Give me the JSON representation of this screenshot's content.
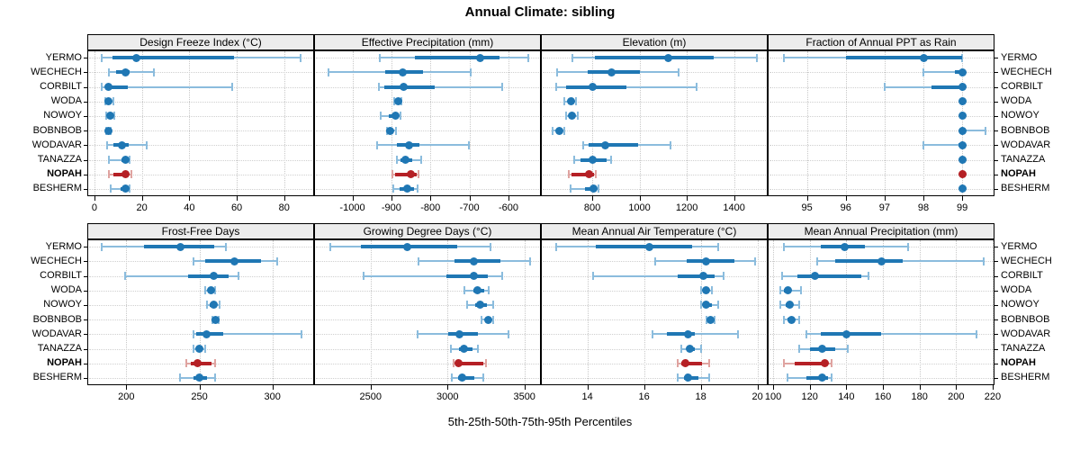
{
  "figure": {
    "title": "Annual Climate: sibling",
    "xlabel": "5th-25th-50th-75th-95th Percentiles",
    "stations": [
      "YERMO",
      "WECHECH",
      "CORBILT",
      "WODA",
      "NOWOY",
      "BOBNBOB",
      "WODAVAR",
      "TANAZZA",
      "NOPAH",
      "BESHERM"
    ],
    "highlight_station": "NOPAH",
    "colors": {
      "median_blue": "#1f77b4",
      "whisker_blue": "#8bbcdd",
      "median_red": "#b52025",
      "whisker_red": "#dfa3a0",
      "strip_bg": "#ececec",
      "panel_border": "#000000",
      "grid": "#c8c8c8",
      "text": "#000000"
    }
  },
  "chart_data": [
    {
      "type": "dotplot-percentiles",
      "title": "Design Freeze Index (°C)",
      "grid_row": 0,
      "grid_col": 0,
      "xlim": [
        -3,
        92.6
      ],
      "ticks": [
        0,
        20,
        40,
        60,
        80
      ],
      "grid": true,
      "series": [
        {
          "name": "YERMO",
          "values": [
            3,
            7.5,
            17.5,
            59,
            87
          ]
        },
        {
          "name": "WECHECH",
          "values": [
            6,
            9,
            13,
            15,
            25
          ]
        },
        {
          "name": "CORBILT",
          "values": [
            3,
            4.5,
            6,
            14,
            58
          ]
        },
        {
          "name": "WODA",
          "values": [
            4.5,
            5.5,
            6,
            7,
            8
          ]
        },
        {
          "name": "NOWOY",
          "values": [
            5,
            5.5,
            6.5,
            7.5,
            8.5
          ]
        },
        {
          "name": "BOBNBOB",
          "values": [
            5,
            5.5,
            6,
            6.5,
            7
          ]
        },
        {
          "name": "WODAVAR",
          "values": [
            5.5,
            8,
            11.5,
            14.5,
            22
          ]
        },
        {
          "name": "TANAZZA",
          "values": [
            6,
            11.5,
            13,
            14,
            15
          ]
        },
        {
          "name": "NOPAH",
          "values": [
            6,
            8,
            13,
            14.5,
            15.5
          ]
        },
        {
          "name": "BESHERM",
          "values": [
            7,
            11,
            13,
            14,
            15
          ]
        }
      ]
    },
    {
      "type": "dotplot-percentiles",
      "title": "Effective Precipitation (mm)",
      "grid_row": 0,
      "grid_col": 1,
      "xlim": [
        -1098,
        -517
      ],
      "ticks": [
        -1000,
        -900,
        -800,
        -700,
        -600
      ],
      "grid": true,
      "series": [
        {
          "name": "YERMO",
          "values": [
            -930,
            -840,
            -672,
            -623,
            -550
          ]
        },
        {
          "name": "WECHECH",
          "values": [
            -1060,
            -915,
            -870,
            -820,
            -696
          ]
        },
        {
          "name": "CORBILT",
          "values": [
            -932,
            -918,
            -869,
            -789,
            -617
          ]
        },
        {
          "name": "WODA",
          "values": [
            -893,
            -889,
            -883,
            -878,
            -874
          ]
        },
        {
          "name": "NOWOY",
          "values": [
            -927,
            -906,
            -890,
            -881,
            -877
          ]
        },
        {
          "name": "BOBNBOB",
          "values": [
            -911,
            -907,
            -903,
            -895,
            -888
          ]
        },
        {
          "name": "WODAVAR",
          "values": [
            -937,
            -885,
            -854,
            -828,
            -701
          ]
        },
        {
          "name": "TANAZZA",
          "values": [
            -886,
            -877,
            -863,
            -846,
            -824
          ]
        },
        {
          "name": "NOPAH",
          "values": [
            -898,
            -890,
            -851,
            -836,
            -830
          ]
        },
        {
          "name": "BESHERM",
          "values": [
            -894,
            -880,
            -860,
            -843,
            -833
          ]
        }
      ]
    },
    {
      "type": "dotplot-percentiles",
      "title": "Elevation (m)",
      "grid_row": 0,
      "grid_col": 2,
      "xlim": [
        583,
        1542
      ],
      "ticks": [
        800,
        1000,
        1200,
        1400
      ],
      "grid": true,
      "series": [
        {
          "name": "YERMO",
          "values": [
            715,
            810,
            1120,
            1315,
            1495
          ]
        },
        {
          "name": "WECHECH",
          "values": [
            652,
            782,
            880,
            1000,
            1165
          ]
        },
        {
          "name": "CORBILT",
          "values": [
            648,
            688,
            800,
            945,
            1240
          ]
        },
        {
          "name": "WODA",
          "values": [
            682,
            700,
            710,
            722,
            732
          ]
        },
        {
          "name": "NOWOY",
          "values": [
            690,
            705,
            716,
            728,
            739
          ]
        },
        {
          "name": "BOBNBOB",
          "values": [
            633,
            650,
            660,
            672,
            682
          ]
        },
        {
          "name": "WODAVAR",
          "values": [
            760,
            785,
            855,
            995,
            1130
          ]
        },
        {
          "name": "TANAZZA",
          "values": [
            725,
            752,
            800,
            860,
            878
          ]
        },
        {
          "name": "NOPAH",
          "values": [
            700,
            712,
            788,
            808,
            815
          ]
        },
        {
          "name": "BESHERM",
          "values": [
            710,
            770,
            805,
            820,
            828
          ]
        }
      ]
    },
    {
      "type": "dotplot-percentiles",
      "title": "Fraction of Annual PPT as Rain",
      "grid_row": 0,
      "grid_col": 3,
      "xlim": [
        93.99,
        99.83
      ],
      "ticks": [
        95,
        96,
        97,
        98,
        99
      ],
      "grid": true,
      "series": [
        {
          "name": "YERMO",
          "values": [
            94.4,
            96,
            98,
            99,
            99
          ]
        },
        {
          "name": "WECHECH",
          "values": [
            98,
            98.8,
            99,
            99,
            99
          ]
        },
        {
          "name": "CORBILT",
          "values": [
            97,
            98.2,
            99,
            99,
            99
          ]
        },
        {
          "name": "WODA",
          "values": [
            99,
            99,
            99,
            99,
            99
          ]
        },
        {
          "name": "NOWOY",
          "values": [
            99,
            99,
            99,
            99,
            99
          ]
        },
        {
          "name": "BOBNBOB",
          "values": [
            99,
            99,
            99,
            99,
            99.6
          ]
        },
        {
          "name": "WODAVAR",
          "values": [
            98,
            98.9,
            99,
            99,
            99
          ]
        },
        {
          "name": "TANAZZA",
          "values": [
            99,
            99,
            99,
            99,
            99
          ]
        },
        {
          "name": "NOPAH",
          "values": [
            99,
            99,
            99,
            99,
            99
          ]
        },
        {
          "name": "BESHERM",
          "values": [
            99,
            99,
            99,
            99,
            99
          ]
        }
      ]
    },
    {
      "type": "dotplot-percentiles",
      "title": "Frost-Free Days",
      "grid_row": 1,
      "grid_col": 0,
      "xlim": [
        173.3,
        328.5
      ],
      "ticks": [
        200,
        250,
        300
      ],
      "grid": true,
      "series": [
        {
          "name": "YERMO",
          "values": [
            183,
            212,
            237,
            260,
            268
          ]
        },
        {
          "name": "WECHECH",
          "values": [
            246,
            254,
            274,
            292,
            303
          ]
        },
        {
          "name": "CORBILT",
          "values": [
            199,
            242,
            260,
            270,
            277
          ]
        },
        {
          "name": "WODA",
          "values": [
            254,
            256,
            258,
            260,
            261
          ]
        },
        {
          "name": "NOWOY",
          "values": [
            255,
            257,
            260,
            262,
            264
          ]
        },
        {
          "name": "BOBNBOB",
          "values": [
            259,
            260,
            261,
            262,
            263
          ]
        },
        {
          "name": "WODAVAR",
          "values": [
            246,
            248,
            255,
            266,
            320
          ]
        },
        {
          "name": "TANAZZA",
          "values": [
            246,
            248,
            250,
            252,
            254
          ]
        },
        {
          "name": "NOPAH",
          "values": [
            241,
            244,
            249,
            258,
            261
          ]
        },
        {
          "name": "BESHERM",
          "values": [
            237,
            246,
            250,
            255,
            261
          ]
        }
      ]
    },
    {
      "type": "dotplot-percentiles",
      "title": "Growing Degree Days (°C)",
      "grid_row": 1,
      "grid_col": 1,
      "xlim": [
        2133,
        3607
      ],
      "ticks": [
        2500,
        3000,
        3500
      ],
      "grid": true,
      "series": [
        {
          "name": "YERMO",
          "values": [
            2240,
            2440,
            2740,
            3065,
            3280
          ]
        },
        {
          "name": "WECHECH",
          "values": [
            2810,
            3045,
            3170,
            3345,
            3535
          ]
        },
        {
          "name": "CORBILT",
          "values": [
            2455,
            2995,
            3170,
            3260,
            3355
          ]
        },
        {
          "name": "WODA",
          "values": [
            3110,
            3170,
            3195,
            3240,
            3265
          ]
        },
        {
          "name": "NOWOY",
          "values": [
            3130,
            3180,
            3215,
            3255,
            3295
          ]
        },
        {
          "name": "BOBNBOB",
          "values": [
            3220,
            3245,
            3265,
            3280,
            3295
          ]
        },
        {
          "name": "WODAVAR",
          "values": [
            2805,
            3005,
            3080,
            3200,
            3395
          ]
        },
        {
          "name": "TANAZZA",
          "values": [
            3025,
            3075,
            3105,
            3160,
            3200
          ]
        },
        {
          "name": "NOPAH",
          "values": [
            3040,
            3055,
            3070,
            3230,
            3250
          ]
        },
        {
          "name": "BESHERM",
          "values": [
            3030,
            3070,
            3095,
            3175,
            3230
          ]
        }
      ]
    },
    {
      "type": "dotplot-percentiles",
      "title": "Mean Annual Air Temperature (°C)",
      "grid_row": 1,
      "grid_col": 2,
      "xlim": [
        12.36,
        20.36
      ],
      "ticks": [
        14,
        16,
        18,
        20
      ],
      "grid": true,
      "series": [
        {
          "name": "YERMO",
          "values": [
            12.9,
            14.3,
            16.2,
            17.7,
            18.6
          ]
        },
        {
          "name": "WECHECH",
          "values": [
            16.4,
            17.5,
            18.2,
            19.2,
            19.9
          ]
        },
        {
          "name": "CORBILT",
          "values": [
            14.2,
            17.2,
            18.1,
            18.5,
            18.8
          ]
        },
        {
          "name": "WODA",
          "values": [
            18,
            18.1,
            18.2,
            18.3,
            18.4
          ]
        },
        {
          "name": "NOWOY",
          "values": [
            18,
            18.1,
            18.2,
            18.4,
            18.6
          ]
        },
        {
          "name": "BOBNBOB",
          "values": [
            18.2,
            18.3,
            18.35,
            18.4,
            18.5
          ]
        },
        {
          "name": "WODAVAR",
          "values": [
            16.3,
            16.8,
            17.55,
            17.8,
            19.3
          ]
        },
        {
          "name": "TANAZZA",
          "values": [
            17.3,
            17.5,
            17.6,
            17.8,
            18
          ]
        },
        {
          "name": "NOPAH",
          "values": [
            17.2,
            17.3,
            17.45,
            18.05,
            18.3
          ]
        },
        {
          "name": "BESHERM",
          "values": [
            17.2,
            17.4,
            17.55,
            17.9,
            18.3
          ]
        }
      ]
    },
    {
      "type": "dotplot-percentiles",
      "title": "Mean Annual Precipitation (mm)",
      "grid_row": 1,
      "grid_col": 3,
      "xlim": [
        97,
        221
      ],
      "ticks": [
        100,
        120,
        140,
        160,
        180,
        200,
        220
      ],
      "grid": true,
      "series": [
        {
          "name": "YERMO",
          "values": [
            106,
            126,
            139,
            150,
            174
          ]
        },
        {
          "name": "WECHECH",
          "values": [
            124,
            134,
            159,
            171,
            215
          ]
        },
        {
          "name": "CORBILT",
          "values": [
            105,
            113,
            123,
            148,
            152
          ]
        },
        {
          "name": "WODA",
          "values": [
            104,
            106,
            108,
            110,
            115
          ]
        },
        {
          "name": "NOWOY",
          "values": [
            104,
            107,
            109,
            111,
            114
          ]
        },
        {
          "name": "BOBNBOB",
          "values": [
            106,
            108,
            110,
            112,
            114
          ]
        },
        {
          "name": "WODAVAR",
          "values": [
            118,
            126,
            140,
            159,
            211
          ]
        },
        {
          "name": "TANAZZA",
          "values": [
            114,
            120,
            127,
            134,
            141
          ]
        },
        {
          "name": "NOPAH",
          "values": [
            106,
            112,
            128,
            130,
            132
          ]
        },
        {
          "name": "BESHERM",
          "values": [
            108,
            118,
            127,
            130,
            132
          ]
        }
      ]
    }
  ]
}
